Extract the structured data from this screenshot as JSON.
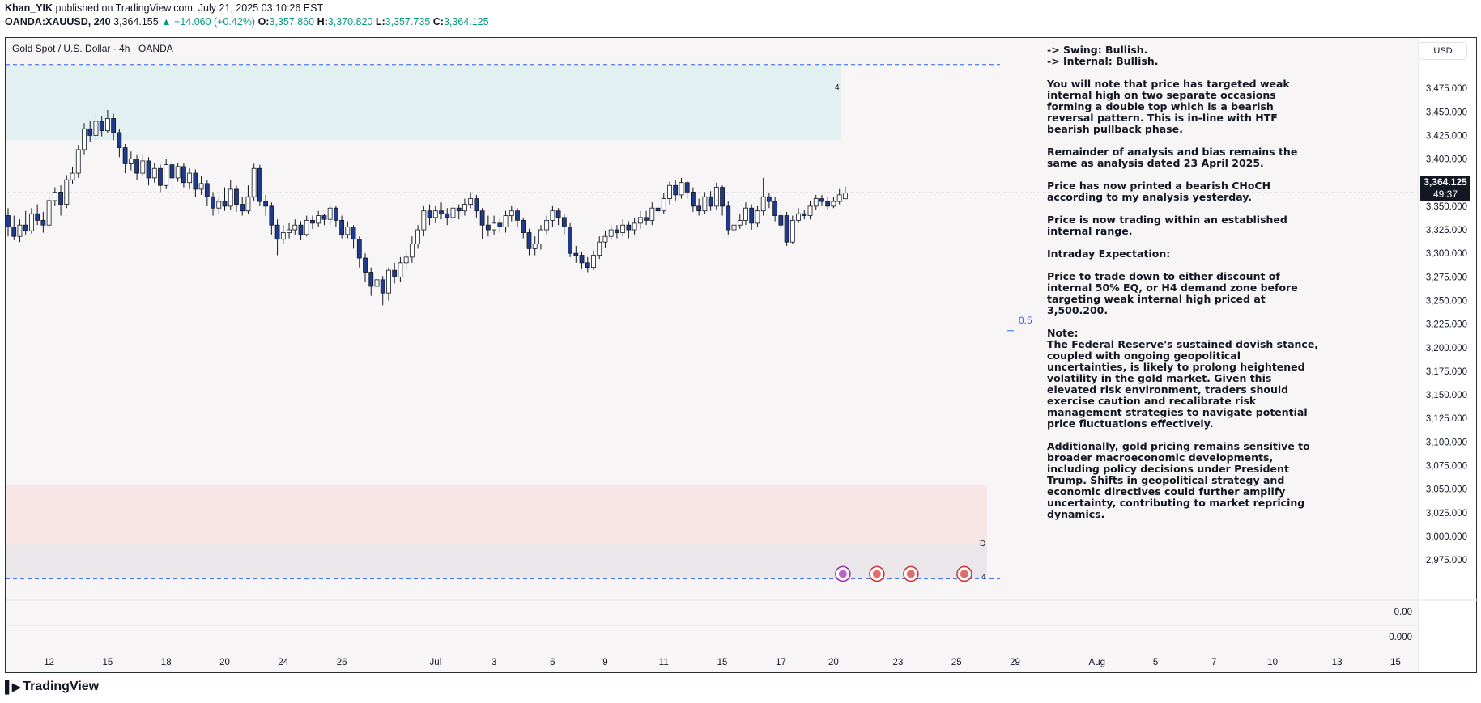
{
  "header": {
    "publisher": "Khan_YIK",
    "published_text": "published on TradingView.com, July 21, 2025 03:10:26 EST",
    "symbol": "OANDA:XAUUSD, 240",
    "last": "3,364.155",
    "change": "▲ +14.060 (+0.42%)",
    "o_label": "O:",
    "o_value": "3,357.860",
    "h_label": "H:",
    "h_value": "3,370.820",
    "l_label": "L:",
    "l_value": "3,357.735",
    "c_label": "C:",
    "c_value": "3,364.125"
  },
  "chart_title": "Gold Spot / U.S. Dollar · 4h · OANDA",
  "currency": "USD",
  "price_tag": {
    "price": "3,364.125",
    "countdown": "49:37"
  },
  "zone_labels": {
    "upper": "4",
    "demand_d": "D",
    "demand_4": "4",
    "fib": "0.5"
  },
  "notes": [
    "-> Swing:  Bullish.\n-> Internal:  Bullish.",
    "You will note that price has targeted weak internal high on two separate occasions forming a double top which is a bearish reversal pattern. This is in-line with HTF bearish pullback phase.",
    "Remainder of analysis and bias remains the same as analysis dated 23 April 2025.",
    "Price has now printed a bearish CHoCH according to my analysis yesterday.",
    "Price is now trading within an established internal range.",
    "Intraday Expectation:",
    "Price to trade down to either discount of internal 50% EQ, or H4 demand zone before targeting weak internal high priced at 3,500.200.",
    "Note:\nThe Federal Reserve's sustained dovish stance, coupled with ongoing geopolitical uncertainties, is likely to prolong heightened volatility in the gold market. Given this elevated risk environment, traders should exercise caution and recalibrate risk management strategies to navigate potential price fluctuations effectively.",
    "Additionally, gold pricing remains sensitive to broader macroeconomic developments, including policy decisions under President Trump. Shifts in geopolitical strategy and economic directives could further amplify uncertainty, contributing to market repricing dynamics."
  ],
  "footer": {
    "brand": "TradingView"
  },
  "colors": {
    "bull": "#ffffff",
    "bear": "#1e3a8a",
    "wick": "#131722",
    "supply_zone": "#e3f0f2",
    "demand_zone": "#f8e6e6",
    "demand_zone2": "#ebe6ea",
    "bg": "#f7f5f6",
    "fib": "#2962ff"
  },
  "chart_data": {
    "type": "candlestick",
    "title": "Gold Spot / U.S. Dollar · 4h · OANDA",
    "ylim": [
      2950,
      3500
    ],
    "y_ticks": [
      "3,475.000",
      "3,450.000",
      "3,425.000",
      "3,400.000",
      "3,375.000",
      "3,350.000",
      "3,325.000",
      "3,300.000",
      "3,275.000",
      "3,250.000",
      "3,225.000",
      "3,200.000",
      "3,175.000",
      "3,150.000",
      "3,125.000",
      "3,100.000",
      "3,075.000",
      "3,050.000",
      "3,025.000",
      "3,000.000",
      "2,975.000"
    ],
    "y_tick_values": [
      3475,
      3450,
      3425,
      3400,
      3375,
      3350,
      3325,
      3300,
      3275,
      3250,
      3225,
      3200,
      3175,
      3150,
      3125,
      3100,
      3075,
      3050,
      3025,
      3000,
      2975
    ],
    "lower_pane_ticks": [
      "0.00",
      "0.000"
    ],
    "x_ticks": [
      {
        "label": "12",
        "i": 7
      },
      {
        "label": "15",
        "i": 17
      },
      {
        "label": "18",
        "i": 27
      },
      {
        "label": "20",
        "i": 37
      },
      {
        "label": "24",
        "i": 47
      },
      {
        "label": "26",
        "i": 57
      },
      {
        "label": "Jul",
        "i": 73
      },
      {
        "label": "3",
        "i": 83
      },
      {
        "label": "6",
        "i": 93
      },
      {
        "label": "9",
        "i": 102
      },
      {
        "label": "11",
        "i": 112
      },
      {
        "label": "15",
        "i": 122
      },
      {
        "label": "17",
        "i": 132
      },
      {
        "label": "20",
        "i": 141
      },
      {
        "label": "23",
        "i": 152
      },
      {
        "label": "25",
        "i": 162
      },
      {
        "label": "29",
        "i": 172
      },
      {
        "label": "Aug",
        "i": 186
      },
      {
        "label": "5",
        "i": 196
      },
      {
        "label": "7",
        "i": 206
      },
      {
        "label": "10",
        "i": 216
      },
      {
        "label": "13",
        "i": 227
      },
      {
        "label": "15",
        "i": 237
      }
    ],
    "zones": [
      {
        "name": "supply",
        "from": 3420,
        "to": 3500
      },
      {
        "name": "demand",
        "from": 2992,
        "to": 3055
      },
      {
        "name": "demand-lower",
        "from": 2955,
        "to": 2992
      }
    ],
    "levels": {
      "upper_dashed": 3500.2,
      "lower_dashed": 2955,
      "last_price": 3364.125,
      "fib_half": 3218
    },
    "candles": [
      [
        3340,
        3328,
        3348,
        3318
      ],
      [
        3328,
        3318,
        3340,
        3314
      ],
      [
        3318,
        3330,
        3336,
        3312
      ],
      [
        3330,
        3324,
        3345,
        3320
      ],
      [
        3324,
        3342,
        3348,
        3321
      ],
      [
        3342,
        3335,
        3352,
        3330
      ],
      [
        3335,
        3330,
        3344,
        3322
      ],
      [
        3330,
        3356,
        3360,
        3326
      ],
      [
        3356,
        3365,
        3370,
        3350
      ],
      [
        3365,
        3352,
        3372,
        3340
      ],
      [
        3352,
        3378,
        3383,
        3348
      ],
      [
        3378,
        3385,
        3392,
        3374
      ],
      [
        3385,
        3410,
        3415,
        3380
      ],
      [
        3410,
        3432,
        3438,
        3405
      ],
      [
        3432,
        3425,
        3440,
        3418
      ],
      [
        3425,
        3440,
        3448,
        3420
      ],
      [
        3440,
        3430,
        3445,
        3424
      ],
      [
        3430,
        3443,
        3452,
        3428
      ],
      [
        3443,
        3428,
        3448,
        3420
      ],
      [
        3428,
        3412,
        3432,
        3402
      ],
      [
        3412,
        3395,
        3416,
        3385
      ],
      [
        3395,
        3400,
        3408,
        3388
      ],
      [
        3400,
        3385,
        3405,
        3378
      ],
      [
        3385,
        3398,
        3404,
        3382
      ],
      [
        3398,
        3380,
        3402,
        3372
      ],
      [
        3380,
        3390,
        3396,
        3375
      ],
      [
        3390,
        3372,
        3394,
        3365
      ],
      [
        3372,
        3394,
        3400,
        3368
      ],
      [
        3394,
        3380,
        3398,
        3372
      ],
      [
        3380,
        3392,
        3396,
        3376
      ],
      [
        3392,
        3375,
        3396,
        3370
      ],
      [
        3375,
        3385,
        3390,
        3368
      ],
      [
        3385,
        3368,
        3389,
        3360
      ],
      [
        3368,
        3374,
        3382,
        3362
      ],
      [
        3374,
        3360,
        3378,
        3350
      ],
      [
        3360,
        3348,
        3365,
        3340
      ],
      [
        3348,
        3355,
        3360,
        3342
      ],
      [
        3355,
        3350,
        3370,
        3345
      ],
      [
        3350,
        3368,
        3378,
        3346
      ],
      [
        3368,
        3352,
        3372,
        3344
      ],
      [
        3352,
        3345,
        3360,
        3340
      ],
      [
        3345,
        3360,
        3372,
        3342
      ],
      [
        3360,
        3390,
        3395,
        3356
      ],
      [
        3390,
        3355,
        3394,
        3350
      ],
      [
        3355,
        3350,
        3362,
        3340
      ],
      [
        3350,
        3330,
        3354,
        3320
      ],
      [
        3330,
        3315,
        3336,
        3298
      ],
      [
        3315,
        3322,
        3330,
        3310
      ],
      [
        3322,
        3325,
        3332,
        3316
      ],
      [
        3325,
        3330,
        3336,
        3320
      ],
      [
        3330,
        3320,
        3334,
        3314
      ],
      [
        3320,
        3335,
        3340,
        3318
      ],
      [
        3335,
        3332,
        3340,
        3326
      ],
      [
        3332,
        3340,
        3345,
        3328
      ],
      [
        3340,
        3336,
        3342,
        3330
      ],
      [
        3336,
        3348,
        3352,
        3330
      ],
      [
        3348,
        3335,
        3350,
        3328
      ],
      [
        3335,
        3320,
        3340,
        3316
      ],
      [
        3320,
        3328,
        3334,
        3316
      ],
      [
        3328,
        3315,
        3330,
        3305
      ],
      [
        3315,
        3295,
        3318,
        3285
      ],
      [
        3295,
        3280,
        3300,
        3270
      ],
      [
        3280,
        3265,
        3285,
        3255
      ],
      [
        3265,
        3272,
        3280,
        3260
      ],
      [
        3272,
        3258,
        3276,
        3245
      ],
      [
        3258,
        3282,
        3285,
        3250
      ],
      [
        3282,
        3275,
        3290,
        3268
      ],
      [
        3275,
        3290,
        3296,
        3270
      ],
      [
        3290,
        3296,
        3302,
        3284
      ],
      [
        3296,
        3310,
        3318,
        3290
      ],
      [
        3310,
        3325,
        3330,
        3305
      ],
      [
        3325,
        3345,
        3350,
        3318
      ],
      [
        3345,
        3338,
        3352,
        3330
      ],
      [
        3338,
        3345,
        3350,
        3332
      ],
      [
        3345,
        3342,
        3354,
        3336
      ],
      [
        3342,
        3338,
        3348,
        3330
      ],
      [
        3338,
        3348,
        3356,
        3332
      ],
      [
        3348,
        3345,
        3352,
        3336
      ],
      [
        3345,
        3352,
        3358,
        3340
      ],
      [
        3352,
        3358,
        3365,
        3348
      ],
      [
        3358,
        3345,
        3362,
        3338
      ],
      [
        3345,
        3330,
        3348,
        3315
      ],
      [
        3330,
        3325,
        3340,
        3318
      ],
      [
        3325,
        3332,
        3340,
        3320
      ],
      [
        3332,
        3328,
        3338,
        3322
      ],
      [
        3328,
        3340,
        3345,
        3322
      ],
      [
        3340,
        3345,
        3350,
        3334
      ],
      [
        3345,
        3335,
        3348,
        3328
      ],
      [
        3335,
        3322,
        3338,
        3316
      ],
      [
        3322,
        3305,
        3326,
        3298
      ],
      [
        3305,
        3310,
        3318,
        3298
      ],
      [
        3310,
        3325,
        3330,
        3304
      ],
      [
        3325,
        3335,
        3340,
        3320
      ],
      [
        3335,
        3345,
        3350,
        3328
      ],
      [
        3345,
        3338,
        3348,
        3330
      ],
      [
        3338,
        3328,
        3342,
        3320
      ],
      [
        3328,
        3300,
        3332,
        3296
      ],
      [
        3300,
        3298,
        3308,
        3290
      ],
      [
        3298,
        3290,
        3302,
        3284
      ],
      [
        3290,
        3285,
        3296,
        3280
      ],
      [
        3285,
        3298,
        3303,
        3282
      ],
      [
        3298,
        3312,
        3318,
        3294
      ],
      [
        3312,
        3318,
        3324,
        3306
      ],
      [
        3318,
        3325,
        3330,
        3314
      ],
      [
        3325,
        3322,
        3330,
        3316
      ],
      [
        3322,
        3330,
        3336,
        3318
      ],
      [
        3330,
        3325,
        3334,
        3316
      ],
      [
        3325,
        3332,
        3338,
        3320
      ],
      [
        3332,
        3338,
        3345,
        3326
      ],
      [
        3338,
        3335,
        3345,
        3330
      ],
      [
        3335,
        3348,
        3354,
        3330
      ],
      [
        3348,
        3345,
        3355,
        3340
      ],
      [
        3345,
        3358,
        3364,
        3342
      ],
      [
        3358,
        3372,
        3376,
        3352
      ],
      [
        3372,
        3362,
        3378,
        3356
      ],
      [
        3362,
        3375,
        3380,
        3358
      ],
      [
        3375,
        3365,
        3378,
        3358
      ],
      [
        3365,
        3350,
        3370,
        3344
      ],
      [
        3350,
        3345,
        3358,
        3340
      ],
      [
        3345,
        3360,
        3365,
        3342
      ],
      [
        3360,
        3350,
        3366,
        3345
      ],
      [
        3350,
        3370,
        3375,
        3346
      ],
      [
        3370,
        3350,
        3372,
        3340
      ],
      [
        3350,
        3325,
        3355,
        3320
      ],
      [
        3325,
        3330,
        3336,
        3320
      ],
      [
        3330,
        3335,
        3342,
        3326
      ],
      [
        3335,
        3348,
        3354,
        3330
      ],
      [
        3348,
        3332,
        3352,
        3325
      ],
      [
        3332,
        3345,
        3350,
        3328
      ],
      [
        3345,
        3360,
        3380,
        3340
      ],
      [
        3360,
        3355,
        3364,
        3348
      ],
      [
        3355,
        3340,
        3360,
        3334
      ],
      [
        3340,
        3330,
        3345,
        3326
      ],
      [
        3340,
        3312,
        3344,
        3308
      ],
      [
        3312,
        3335,
        3340,
        3310
      ],
      [
        3335,
        3342,
        3348,
        3332
      ],
      [
        3342,
        3340,
        3346,
        3336
      ],
      [
        3340,
        3350,
        3356,
        3336
      ],
      [
        3350,
        3358,
        3362,
        3346
      ],
      [
        3358,
        3355,
        3362,
        3350
      ],
      [
        3355,
        3350,
        3360,
        3346
      ],
      [
        3350,
        3355,
        3360,
        3348
      ],
      [
        3355,
        3362,
        3368,
        3352
      ],
      [
        3357.86,
        3364.125,
        3370.82,
        3357.735
      ]
    ]
  }
}
